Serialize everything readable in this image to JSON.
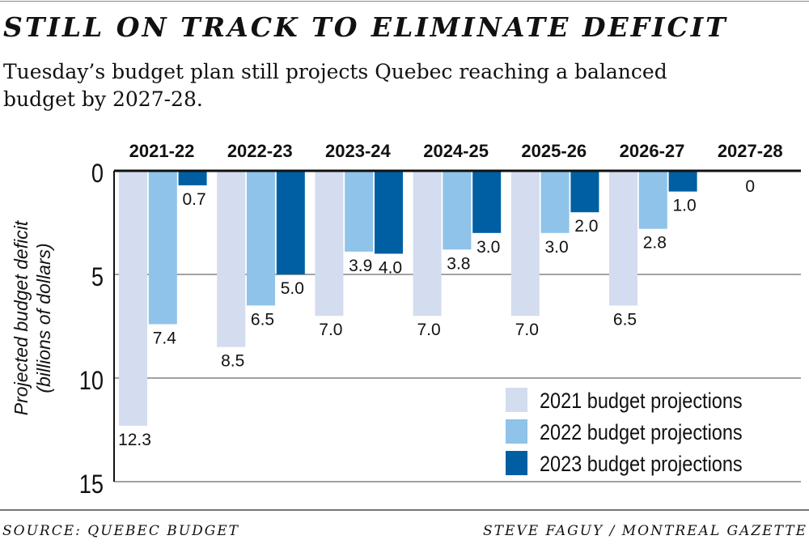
{
  "title": "STILL ON TRACK TO ELIMINATE DEFICIT",
  "subtitle": "Tuesday’s budget plan still projects Quebec reaching a balanced budget by 2027-28.",
  "footer": {
    "source": "SOURCE: QUEBEC BUDGET",
    "credit": "STEVE FAGUY / MONTREAL GAZETTE"
  },
  "chart_data": {
    "type": "bar",
    "orientation": "vertical-downward",
    "categories": [
      "2021-22",
      "2022-23",
      "2023-24",
      "2024-25",
      "2025-26",
      "2026-27",
      "2027-28"
    ],
    "series": [
      {
        "name": "2021 budget projections",
        "color": "#d4dcef",
        "values": [
          12.3,
          8.5,
          7.0,
          7.0,
          7.0,
          6.5,
          null
        ]
      },
      {
        "name": "2022 budget projections",
        "color": "#8fc3e9",
        "values": [
          7.4,
          6.5,
          3.9,
          3.8,
          3.0,
          2.8,
          null
        ]
      },
      {
        "name": "2023 budget projections",
        "color": "#005fa3",
        "values": [
          0.7,
          5.0,
          4.0,
          3.0,
          2.0,
          1.0,
          0
        ]
      }
    ],
    "ylabel": "Projected budget deficit",
    "ylabel2": "(billions of dollars)",
    "ylim": [
      0,
      15
    ],
    "yticks": [
      0,
      5,
      10,
      15
    ],
    "y_inverted": true,
    "grid": true,
    "legend": "bottom-right",
    "zero_label": "0"
  }
}
